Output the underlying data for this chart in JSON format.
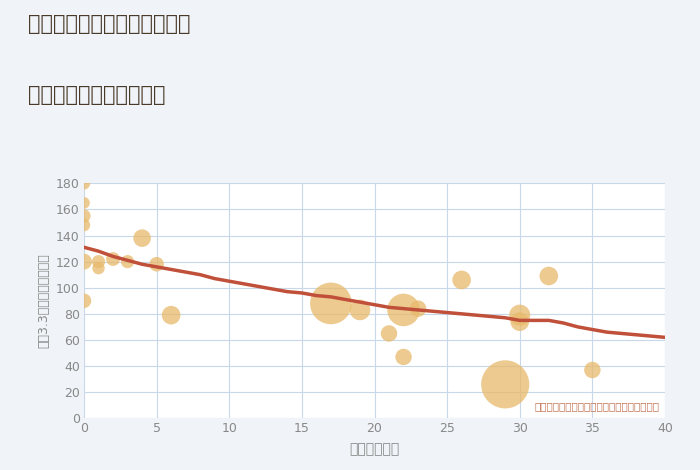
{
  "title_line1": "愛知県名古屋市緑区南大高の",
  "title_line2": "築年数別中古戸建て価格",
  "xlabel": "築年数（年）",
  "ylabel": "坪（3.3㎡）単価（万円）",
  "annotation": "円の大きさは、取引のあった物件面積を示す",
  "bg_color": "#f0f4f8",
  "plot_bg_color": "#ffffff",
  "grid_color": "#c8d8e8",
  "title_color": "#4a3a2a",
  "axis_color": "#888888",
  "annotation_color": "#c07050",
  "xlim": [
    0,
    40
  ],
  "ylim": [
    0,
    180
  ],
  "xticks": [
    0,
    5,
    10,
    15,
    20,
    25,
    30,
    35,
    40
  ],
  "yticks": [
    0,
    20,
    40,
    60,
    80,
    100,
    120,
    140,
    160,
    180
  ],
  "scatter_x": [
    0,
    0,
    0,
    0,
    0,
    0,
    1,
    1,
    2,
    3,
    4,
    5,
    6,
    17,
    19,
    21,
    22,
    22,
    23,
    26,
    29,
    30,
    30,
    32,
    35
  ],
  "scatter_y": [
    180,
    165,
    155,
    148,
    120,
    90,
    120,
    115,
    122,
    120,
    138,
    118,
    79,
    88,
    83,
    65,
    83,
    47,
    84,
    106,
    26,
    79,
    74,
    109,
    37
  ],
  "scatter_size": [
    80,
    70,
    90,
    80,
    130,
    110,
    90,
    80,
    100,
    90,
    160,
    110,
    180,
    900,
    220,
    140,
    550,
    140,
    140,
    180,
    1200,
    230,
    180,
    180,
    140
  ],
  "scatter_color": "#e8b96a",
  "scatter_alpha": 0.75,
  "line_x": [
    0,
    1,
    2,
    3,
    4,
    5,
    6,
    7,
    8,
    9,
    10,
    11,
    12,
    13,
    14,
    15,
    16,
    17,
    18,
    19,
    20,
    21,
    22,
    23,
    24,
    25,
    26,
    27,
    28,
    29,
    30,
    31,
    32,
    33,
    34,
    35,
    36,
    37,
    38,
    39,
    40
  ],
  "line_y": [
    131,
    128,
    124,
    121,
    118,
    116,
    114,
    112,
    110,
    107,
    105,
    103,
    101,
    99,
    97,
    96,
    94,
    93,
    91,
    89,
    87,
    85,
    84,
    83,
    82,
    81,
    80,
    79,
    78,
    77,
    75,
    75,
    75,
    73,
    70,
    68,
    66,
    65,
    64,
    63,
    62
  ],
  "line_color": "#c0503a",
  "line_width": 2.5
}
